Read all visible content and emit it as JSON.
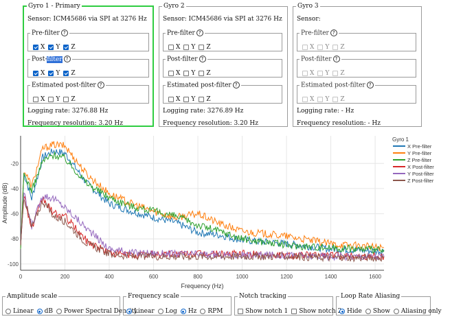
{
  "gyros": [
    {
      "title": "Gyro 1 - Primary",
      "sensor": "Sensor: ICM45686 via SPI at 3276 Hz",
      "groups": [
        {
          "label": "Pre-filter",
          "highlight": "",
          "axes": [
            {
              "label": "X",
              "checked": true
            },
            {
              "label": "Y",
              "checked": true
            },
            {
              "label": "Z",
              "checked": true
            }
          ]
        },
        {
          "label": "Post-",
          "highlight": "filter",
          "axes": [
            {
              "label": "X",
              "checked": true
            },
            {
              "label": "Y",
              "checked": true
            },
            {
              "label": "Z",
              "checked": true
            }
          ]
        },
        {
          "label": "Estimated post-filter",
          "highlight": "",
          "axes": [
            {
              "label": "X",
              "checked": false
            },
            {
              "label": "Y",
              "checked": false
            },
            {
              "label": "Z",
              "checked": false
            }
          ]
        }
      ],
      "logging_rate": "Logging rate: 3276.88 Hz",
      "freq_res": "Frequency resolution: 3.20 Hz"
    },
    {
      "title": "Gyro 2",
      "sensor": "Sensor: ICM45686 via SPI at 3276 Hz",
      "groups": [
        {
          "label": "Pre-filter",
          "highlight": "",
          "axes": [
            {
              "label": "X",
              "checked": false
            },
            {
              "label": "Y",
              "checked": false
            },
            {
              "label": "Z",
              "checked": false
            }
          ]
        },
        {
          "label": "Post-filter",
          "highlight": "",
          "axes": [
            {
              "label": "X",
              "checked": false
            },
            {
              "label": "Y",
              "checked": false
            },
            {
              "label": "Z",
              "checked": false
            }
          ]
        },
        {
          "label": "Estimated post-filter",
          "highlight": "",
          "axes": [
            {
              "label": "X",
              "checked": false
            },
            {
              "label": "Y",
              "checked": false
            },
            {
              "label": "Z",
              "checked": false
            }
          ]
        }
      ],
      "logging_rate": "Logging rate: 3276.89 Hz",
      "freq_res": "Frequency resolution: 3.20 Hz"
    },
    {
      "title": "Gyro 3",
      "sensor": "Sensor:",
      "groups": [
        {
          "label": "Pre-filter",
          "highlight": "",
          "axes": [
            {
              "label": "X",
              "checked": false
            },
            {
              "label": "Y",
              "checked": false
            },
            {
              "label": "Z",
              "checked": false
            }
          ]
        },
        {
          "label": "Post-filter",
          "highlight": "",
          "axes": [
            {
              "label": "X",
              "checked": false
            },
            {
              "label": "Y",
              "checked": false
            },
            {
              "label": "Z",
              "checked": false
            }
          ]
        },
        {
          "label": "Estimated post-filter",
          "highlight": "",
          "axes": [
            {
              "label": "X",
              "checked": false
            },
            {
              "label": "Y",
              "checked": false
            },
            {
              "label": "Z",
              "checked": false
            }
          ]
        }
      ],
      "logging_rate": "Logging rate: - Hz",
      "freq_res": "Frequency resolution: - Hz"
    }
  ],
  "controls": [
    {
      "title": "Amplitude scale",
      "options": [
        {
          "label": "Linear",
          "selected": false
        },
        {
          "label": "dB",
          "selected": true
        },
        {
          "label": "Power Spectral Density",
          "selected": false
        }
      ]
    },
    {
      "title": "Frequency scale",
      "options": [
        {
          "label": "Linear",
          "selected": true
        },
        {
          "label": "Log",
          "selected": false
        },
        {
          "label": "Hz",
          "selected": true
        },
        {
          "label": "RPM",
          "selected": false
        }
      ]
    },
    {
      "title": "Notch tracking",
      "checkboxes": [
        {
          "label": "Show notch 1",
          "checked": false
        },
        {
          "label": "Show notch 2",
          "checked": false
        }
      ]
    },
    {
      "title": "Loop Rate Aliasing",
      "options": [
        {
          "label": "Hide",
          "selected": true
        },
        {
          "label": "Show",
          "selected": false
        },
        {
          "label": "Aliasing only",
          "selected": false
        }
      ]
    }
  ],
  "chart_data": {
    "type": "line",
    "xlabel": "Frequency (Hz)",
    "ylabel": "Amplitude (dB)",
    "xlim": [
      0,
      1640
    ],
    "ylim": [
      -105,
      2
    ],
    "x_ticks": [
      0,
      200,
      400,
      600,
      800,
      1000,
      1200,
      1400,
      1600
    ],
    "y_ticks": [
      -20,
      -40,
      -60,
      -80,
      -100
    ],
    "grid": true,
    "legend_position": "right",
    "legend_title": "Gyro 1",
    "series": [
      {
        "name": "X Pre-filter",
        "color": "#1f77b4",
        "x": [
          0,
          15,
          50,
          100,
          150,
          200,
          300,
          400,
          500,
          600,
          700,
          800,
          900,
          1000,
          1200,
          1400,
          1640
        ],
        "y": [
          -88,
          -28,
          -48,
          -15,
          -10,
          -12,
          -36,
          -52,
          -58,
          -63,
          -67,
          -75,
          -77,
          -81,
          -84,
          -88,
          -90
        ]
      },
      {
        "name": "Y Pre-filter",
        "color": "#ff7f0e",
        "x": [
          0,
          15,
          50,
          100,
          150,
          200,
          300,
          400,
          500,
          600,
          700,
          800,
          900,
          1000,
          1200,
          1400,
          1640
        ],
        "y": [
          -88,
          -25,
          -38,
          -8,
          -5,
          -6,
          -29,
          -44,
          -52,
          -58,
          -63,
          -60,
          -68,
          -74,
          -78,
          -84,
          -87
        ]
      },
      {
        "name": "Z Pre-filter",
        "color": "#2ca02c",
        "x": [
          0,
          15,
          50,
          100,
          150,
          200,
          300,
          400,
          500,
          600,
          700,
          800,
          900,
          1000,
          1200,
          1400,
          1640
        ],
        "y": [
          -88,
          -28,
          -42,
          -18,
          -13,
          -16,
          -36,
          -47,
          -54,
          -58,
          -62,
          -69,
          -74,
          -80,
          -85,
          -87,
          -89
        ]
      },
      {
        "name": "X Post-filter",
        "color": "#d62728",
        "x": [
          0,
          15,
          50,
          100,
          150,
          200,
          300,
          400,
          500,
          700,
          1000,
          1200,
          1400,
          1640
        ],
        "y": [
          -85,
          -45,
          -72,
          -48,
          -60,
          -62,
          -82,
          -91,
          -93,
          -92,
          -92,
          -93,
          -93,
          -94
        ]
      },
      {
        "name": "Y Post-filter",
        "color": "#9467bd",
        "x": [
          0,
          15,
          50,
          100,
          150,
          200,
          300,
          400,
          500,
          700,
          1000,
          1200,
          1400,
          1640
        ],
        "y": [
          -85,
          -44,
          -70,
          -45,
          -48,
          -55,
          -72,
          -88,
          -91,
          -92,
          -93,
          -93,
          -94,
          -94
        ]
      },
      {
        "name": "Z Post-filter",
        "color": "#8c564b",
        "x": [
          0,
          15,
          50,
          100,
          150,
          200,
          300,
          400,
          500,
          700,
          1000,
          1200,
          1400,
          1640
        ],
        "y": [
          -85,
          -46,
          -71,
          -50,
          -62,
          -66,
          -84,
          -92,
          -94,
          -94,
          -94,
          -94,
          -95,
          -95
        ]
      }
    ]
  }
}
